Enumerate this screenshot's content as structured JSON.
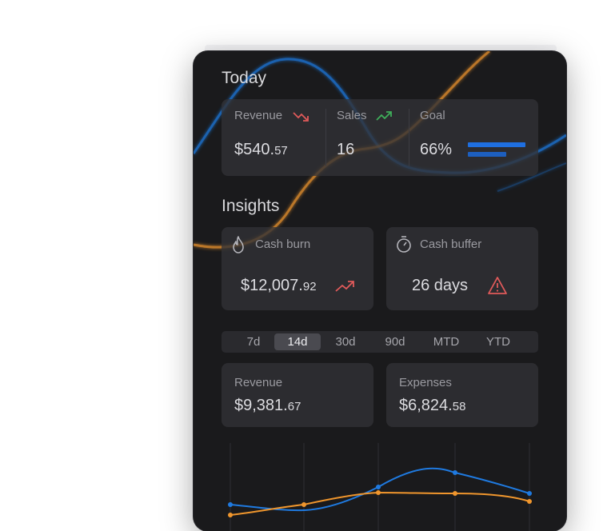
{
  "today": {
    "title": "Today",
    "revenue": {
      "label": "Revenue",
      "whole": "$540.",
      "cents": "57",
      "trend_icon": "trend-down-icon",
      "trend_color": "#e05a5a"
    },
    "sales": {
      "label": "Sales",
      "value": "16",
      "trend_icon": "trend-up-icon",
      "trend_color": "#3fae5a"
    },
    "goal": {
      "label": "Goal",
      "value": "66%",
      "progress": 0.66,
      "bar_color": "#1f6fe0"
    }
  },
  "insights": {
    "title": "Insights",
    "cash_burn": {
      "label": "Cash burn",
      "whole": "$12,007.",
      "cents": "92",
      "icon": "flame-icon",
      "trend_icon": "trend-up-icon",
      "trend_color": "#e05a5a"
    },
    "cash_buffer": {
      "label": "Cash buffer",
      "value": "26 days",
      "icon": "stopwatch-icon",
      "alert_icon": "warning-icon",
      "alert_color": "#e05a5a"
    }
  },
  "period_tabs": {
    "items": [
      "7d",
      "14d",
      "30d",
      "90d",
      "MTD",
      "YTD"
    ],
    "selected": "14d"
  },
  "summary": {
    "revenue": {
      "label": "Revenue",
      "whole": "$9,381.",
      "cents": "67"
    },
    "expenses": {
      "label": "Expenses",
      "whole": "$6,824.",
      "cents": "58"
    }
  },
  "colors": {
    "revenue_line": "#1f7ae0",
    "expenses_line": "#f0962d",
    "background": "#1a1a1c",
    "card": "#323236"
  }
}
